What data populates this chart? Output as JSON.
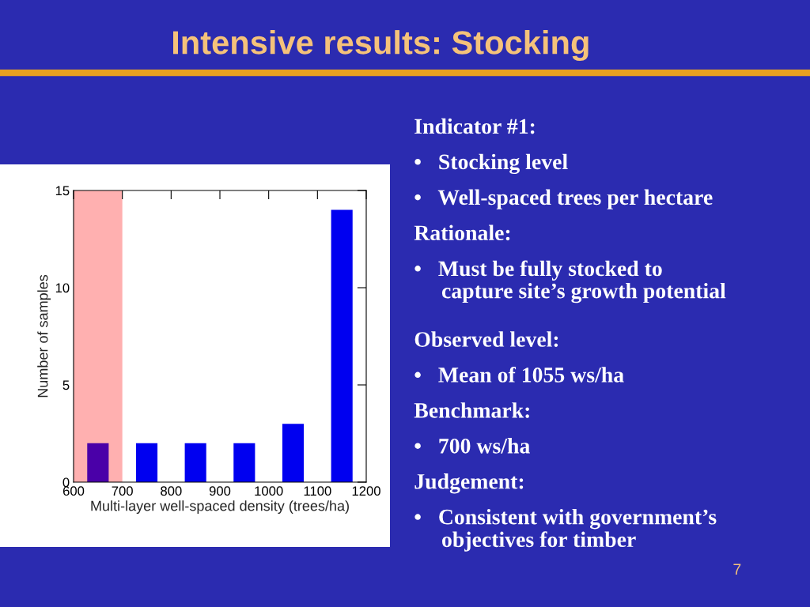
{
  "chart_data": {
    "type": "bar",
    "title": "Intensive results: Stocking",
    "xlabel": "Multi-layer well-spaced density (trees/ha)",
    "ylabel": "Number of samples",
    "x": [
      650,
      750,
      850,
      950,
      1050,
      1150
    ],
    "values": [
      2,
      2,
      2,
      2,
      3,
      14
    ],
    "colors": [
      "#4a00a8",
      "#0000f0",
      "#0000f0",
      "#0000f0",
      "#0000f0",
      "#0000f0"
    ],
    "xlim": [
      600,
      1200
    ],
    "xticks": [
      600,
      700,
      800,
      900,
      1000,
      1100,
      1200
    ],
    "ylim": [
      0,
      15
    ],
    "yticks": [
      0,
      5,
      10,
      15
    ],
    "grid": false,
    "bands": [
      {
        "axis": "x",
        "from": 600,
        "to": 700,
        "color": "#ffb0b0"
      }
    ],
    "annotations": [
      "Indicator #1:",
      "•   Stocking level",
      "•   Well-spaced trees per hectare",
      "Rationale:",
      "•   Must be fully stocked to\n     capture site’s growth potential",
      "Observed level:",
      "•   Mean of 1055 ws/ha",
      "Benchmark:",
      "•   700 ws/ha",
      "Judgement:",
      "•   Consistent with government’s\n     objectives for timber",
      "7"
    ]
  }
}
